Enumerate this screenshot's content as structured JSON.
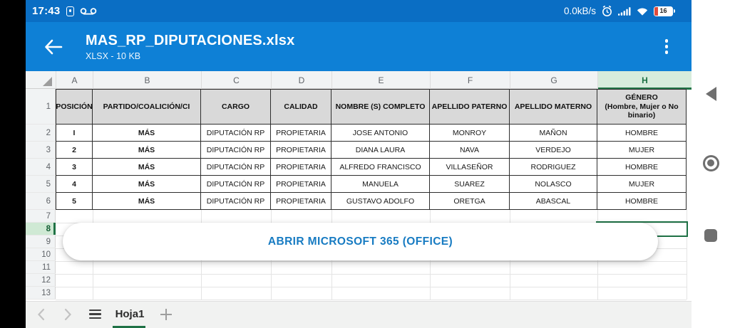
{
  "status_bar": {
    "time": "17:43",
    "net_speed": "0.0kB/s",
    "battery_percent": "16",
    "icons": [
      "security-icon",
      "voicemail-icon",
      "alarm-icon",
      "signal-icon",
      "wifi-icon",
      "battery-icon"
    ]
  },
  "app_bar": {
    "title": "MAS_RP_DIPUTACIONES.xlsx",
    "subtitle": "XLSX - 10 KB",
    "icons": [
      "back-arrow-icon",
      "kebab-menu-icon"
    ]
  },
  "spreadsheet": {
    "column_letters": [
      "A",
      "B",
      "C",
      "D",
      "E",
      "F",
      "G",
      "H"
    ],
    "row_numbers": [
      "1",
      "2",
      "3",
      "4",
      "5",
      "6",
      "7",
      "8",
      "9",
      "10",
      "11",
      "12",
      "13"
    ],
    "selected_column": "H",
    "selected_row": "8",
    "header_row": [
      "POSICIÓN",
      "PARTIDO/COALICIÓN/CI",
      "CARGO",
      "CALIDAD",
      "NOMBRE (S) COMPLETO",
      "APELLIDO PATERNO",
      "APELLIDO  MATERNO",
      "GÉNERO\n(Hombre, Mujer o No binario)"
    ],
    "rows": [
      [
        "I",
        "MÁS",
        "DIPUTACIÓN RP",
        "PROPIETARIA",
        "JOSE ANTONIO",
        "MONROY",
        "MAÑON",
        "HOMBRE"
      ],
      [
        "2",
        "MÁS",
        "DIPUTACIÓN RP",
        "PROPIETARIA",
        "DIANA LAURA",
        "NAVA",
        "VERDEJO",
        "MUJER"
      ],
      [
        "3",
        "MÁS",
        "DIPUTACIÓN RP",
        "PROPIETARIA",
        "ALFREDO FRANCISCO",
        "VILLASEÑOR",
        "RODRIGUEZ",
        "HOMBRE"
      ],
      [
        "4",
        "MÁS",
        "DIPUTACIÓN RP",
        "PROPIETARIA",
        "MANUELA",
        "SUAREZ",
        "NOLASCO",
        "MUJER"
      ],
      [
        "5",
        "MÁS",
        "DIPUTACIÓN RP",
        "PROPIETARIA",
        "GUSTAVO ADOLFO",
        "ORETGA",
        "ABASCAL",
        "HOMBRE"
      ]
    ]
  },
  "open_button": {
    "label": "ABRIR MICROSOFT 365 (OFFICE)"
  },
  "sheet_tab_bar": {
    "active_tab": "Hoja1",
    "icons": [
      "chevron-left-icon",
      "chevron-right-icon",
      "hamburger-menu-icon",
      "plus-icon"
    ]
  },
  "android_nav": {
    "icons": [
      "nav-back-icon",
      "nav-home-icon",
      "nav-recents-icon"
    ]
  },
  "colors": {
    "status_bar_blue": "#0a6ec4",
    "app_bar_blue": "#0e80d6",
    "accent_green": "#217346",
    "selection_green_light": "#d7ecdc",
    "header_cell_gray": "#d9d9d9",
    "button_text_blue": "#177bc2",
    "battery_low_red": "#e04b3c"
  }
}
